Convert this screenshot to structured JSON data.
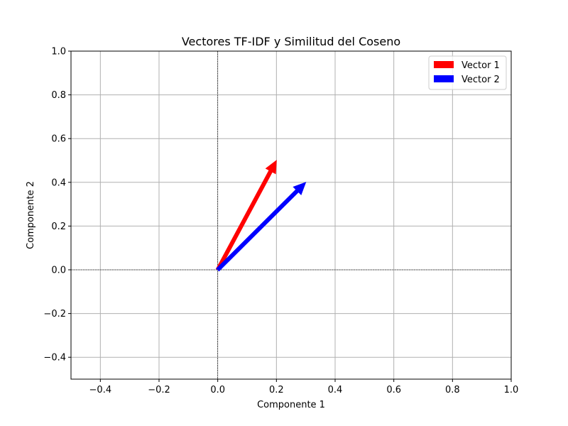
{
  "chart_data": {
    "type": "quiver",
    "title": "Vectores TF-IDF y Similitud del Coseno",
    "xlabel": "Componente 1",
    "ylabel": "Componente 2",
    "xlim": [
      -0.5,
      1.0
    ],
    "ylim": [
      -0.5,
      1.0
    ],
    "xticks": [
      -0.4,
      -0.2,
      0.0,
      0.2,
      0.4,
      0.6,
      0.8,
      1.0
    ],
    "yticks": [
      -0.4,
      -0.2,
      0.0,
      0.2,
      0.4,
      0.6,
      0.8,
      1.0
    ],
    "xtick_labels": [
      "−0.4",
      "−0.2",
      "0.0",
      "0.2",
      "0.4",
      "0.6",
      "0.8",
      "1.0"
    ],
    "ytick_labels": [
      "−0.4",
      "−0.2",
      "0.0",
      "0.2",
      "0.4",
      "0.6",
      "0.8",
      "1.0"
    ],
    "grid": true,
    "reference_lines": {
      "x": 0,
      "y": 0,
      "style": "dashed"
    },
    "legend_position": "top-right",
    "series": [
      {
        "name": "Vector 1",
        "origin": [
          0,
          0
        ],
        "vector": [
          0.2,
          0.5
        ],
        "color": "#ff0000"
      },
      {
        "name": "Vector 2",
        "origin": [
          0,
          0
        ],
        "vector": [
          0.3,
          0.4
        ],
        "color": "#0000ff"
      }
    ]
  }
}
